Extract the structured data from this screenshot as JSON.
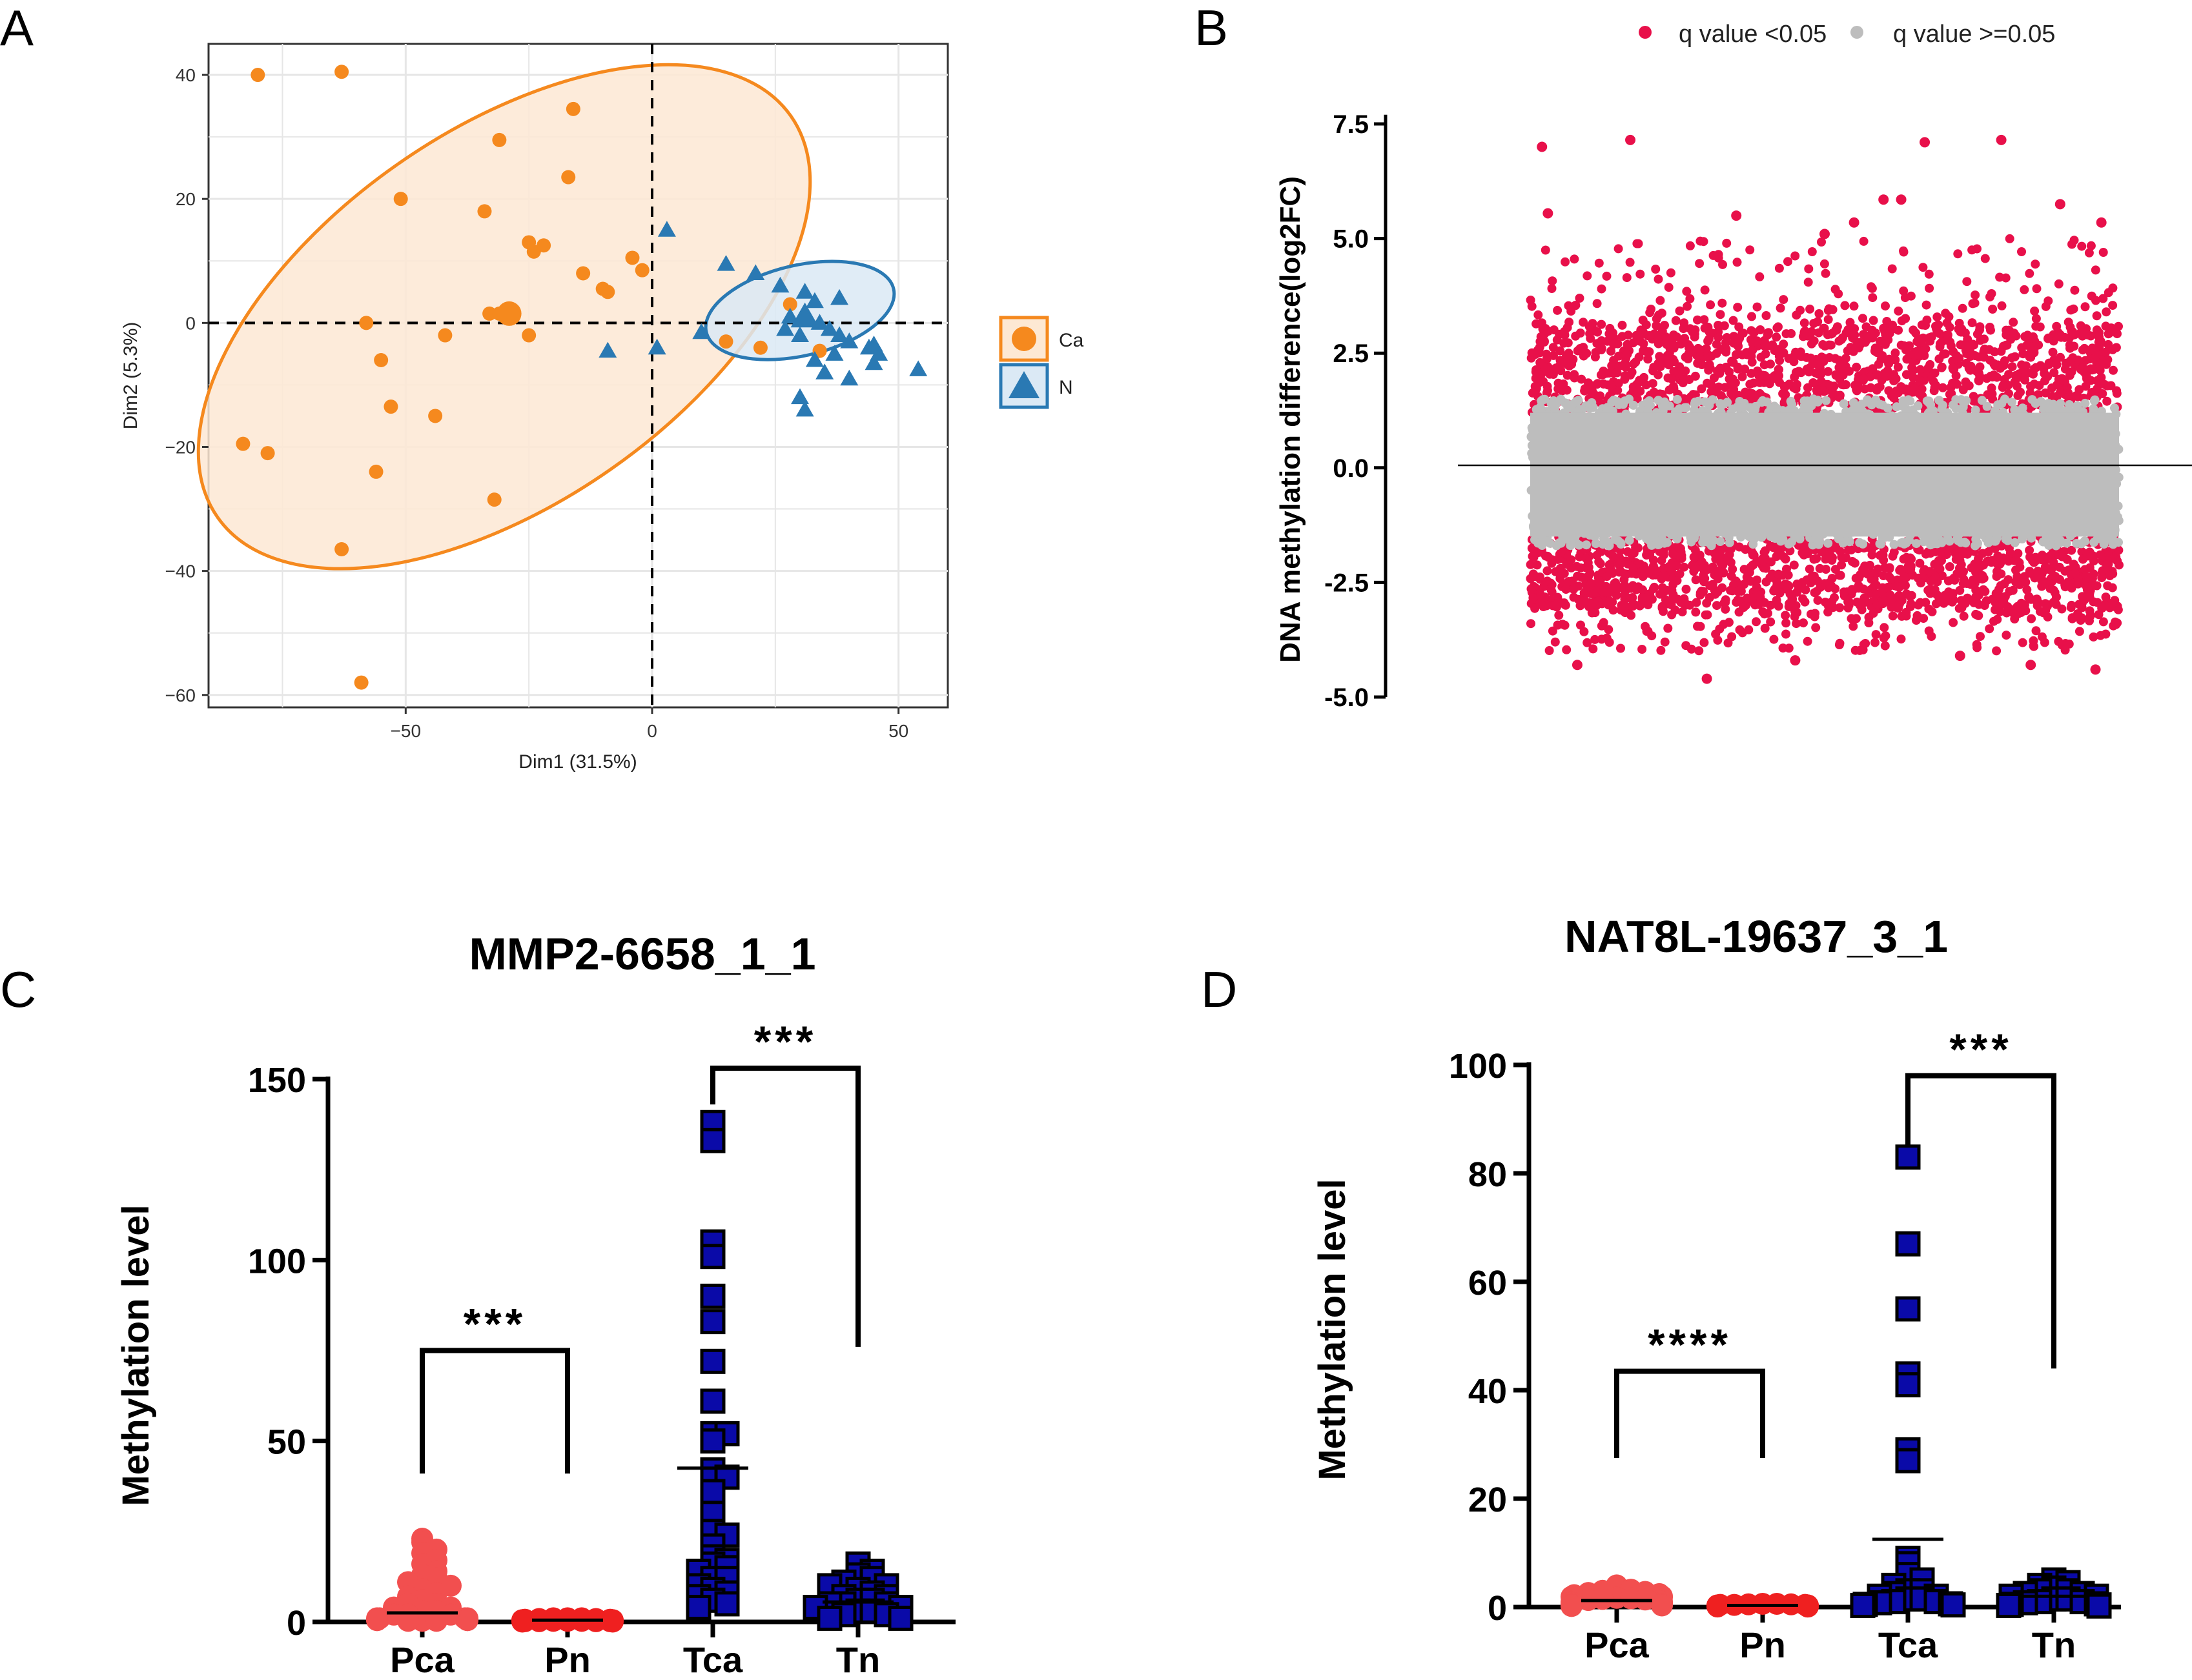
{
  "colors": {
    "ca": "#f5891e",
    "n": "#2a79b3",
    "sig": "#e8104a",
    "nonsig": "#bdbdbd",
    "pca": "#f24f4f",
    "pn": "#ef2020",
    "tca_fill": "#0a0aa8",
    "grid": "#e6e6e6",
    "black": "#000000"
  },
  "chart_data": [
    {
      "type": "scatter",
      "panel_letter": "A",
      "xlabel": "Dim1 (31.5%)",
      "ylabel": "Dim2 (5.3%)",
      "xlim": [
        -90,
        60
      ],
      "ylim": [
        -62,
        45
      ],
      "xticks": [
        -50,
        0,
        50
      ],
      "yticks": [
        -60,
        -40,
        -20,
        0,
        20,
        40
      ],
      "xtick_labels": [
        "−50",
        "0",
        "50"
      ],
      "ytick_labels": [
        "−60",
        "−40",
        "−20",
        "0",
        "20",
        "40"
      ],
      "legend": [
        {
          "name": "Ca",
          "marker": "circle"
        },
        {
          "name": "N",
          "marker": "triangle"
        }
      ],
      "ellipses": [
        {
          "group": "Ca",
          "cx": -30,
          "cy": 1,
          "rx": 71,
          "ry": 30,
          "angle_deg": -35
        },
        {
          "group": "N",
          "cx": 30,
          "cy": 2,
          "rx": 19.5,
          "ry": 7.3,
          "angle_deg": -13
        }
      ],
      "centroids": [
        {
          "group": "Ca",
          "x": -29,
          "y": 1.5
        },
        {
          "group": "N",
          "x": 31,
          "y": 1
        }
      ],
      "series": [
        {
          "name": "Ca",
          "points": [
            [
              -80,
              40
            ],
            [
              -63,
              40.5
            ],
            [
              -16,
              34.5
            ],
            [
              -31,
              29.5
            ],
            [
              -17,
              23.5
            ],
            [
              -51,
              20
            ],
            [
              -34,
              18
            ],
            [
              -25,
              13
            ],
            [
              -22,
              12.5
            ],
            [
              -24,
              11.5
            ],
            [
              -4,
              10.5
            ],
            [
              -2,
              8.5
            ],
            [
              -14,
              8
            ],
            [
              -10,
              5.5
            ],
            [
              -9,
              5
            ],
            [
              -33,
              1.5
            ],
            [
              -31,
              1.5
            ],
            [
              -58,
              0
            ],
            [
              -42,
              -2
            ],
            [
              -25,
              -2
            ],
            [
              -55,
              -6
            ],
            [
              -53,
              -13.5
            ],
            [
              -44,
              -15
            ],
            [
              -56,
              -24
            ],
            [
              -32,
              -28.5
            ],
            [
              -83,
              -19.5
            ],
            [
              -78,
              -21
            ],
            [
              -63,
              -36.5
            ],
            [
              -59,
              -58
            ],
            [
              28,
              3
            ],
            [
              15,
              -3
            ],
            [
              22,
              -4
            ],
            [
              34,
              -4.5
            ]
          ]
        },
        {
          "name": "N",
          "points": [
            [
              3,
              15
            ],
            [
              15,
              9.5
            ],
            [
              21,
              8
            ],
            [
              26,
              6
            ],
            [
              31,
              5
            ],
            [
              38,
              4
            ],
            [
              33,
              3.5
            ],
            [
              28,
              1
            ],
            [
              31,
              0.5
            ],
            [
              34,
              0
            ],
            [
              36,
              -1
            ],
            [
              30,
              -2
            ],
            [
              27,
              -1
            ],
            [
              38,
              -2
            ],
            [
              40,
              -3
            ],
            [
              45,
              -3.5
            ],
            [
              46,
              -5
            ],
            [
              45,
              -6.5
            ],
            [
              33,
              -6
            ],
            [
              35,
              -8
            ],
            [
              40,
              -9
            ],
            [
              30,
              -12
            ],
            [
              31,
              -14
            ],
            [
              54,
              -7.5
            ],
            [
              10,
              -1.5
            ],
            [
              1,
              -4
            ],
            [
              -9,
              -4.5
            ],
            [
              44,
              -4
            ],
            [
              37,
              -5
            ]
          ]
        }
      ]
    },
    {
      "type": "scatter",
      "panel_letter": "B",
      "ylabel": "DNA methylation difference(log2FC)",
      "ylim": [
        -5,
        7.5
      ],
      "yticks": [
        -5,
        -2.5,
        0,
        2.5,
        5,
        7.5
      ],
      "ytick_labels": [
        "-5.0",
        "-2.5",
        "0.0",
        "2.5",
        "5.0",
        "7.5"
      ],
      "legend": [
        {
          "name": "q value <0.05"
        },
        {
          "name": "q value >=0.05"
        }
      ],
      "series": [
        {
          "name": "q value >=0.05",
          "y_band": [
            -1.7,
            1.5
          ]
        },
        {
          "name": "q value <0.05",
          "y_band_upper": [
            1.2,
            3.0
          ],
          "y_band_lower": [
            -3.0,
            -1.5
          ]
        }
      ],
      "outliers_sig": [
        [
          0.02,
          7.0
        ],
        [
          0.17,
          7.15
        ],
        [
          0.67,
          7.1
        ],
        [
          0.8,
          7.15
        ],
        [
          0.03,
          5.55
        ],
        [
          0.35,
          5.5
        ],
        [
          0.5,
          5.1
        ],
        [
          0.55,
          5.35
        ],
        [
          0.6,
          5.85
        ],
        [
          0.63,
          5.85
        ],
        [
          0.9,
          5.75
        ],
        [
          0.97,
          5.35
        ],
        [
          0.08,
          -4.3
        ],
        [
          0.3,
          -4.6
        ],
        [
          0.45,
          -4.2
        ],
        [
          0.73,
          -4.1
        ],
        [
          0.85,
          -4.3
        ],
        [
          0.96,
          -4.4
        ]
      ]
    },
    {
      "type": "scatter",
      "panel_letter": "C",
      "title": "MMP2-6658_1_1",
      "ylabel": "Methylation level",
      "ylim": [
        0,
        150
      ],
      "yticks": [
        0,
        50,
        100,
        150
      ],
      "categories": [
        "Pca",
        "Pn",
        "Tca",
        "Tn"
      ],
      "means": [
        2.5,
        0.5,
        42.5,
        5.5
      ],
      "annotations": [
        {
          "text": "***",
          "between": [
            "Pca",
            "Pn"
          ],
          "y": 75,
          "left_drop": 41,
          "right_drop": 41
        },
        {
          "text": "***",
          "between": [
            "Tca",
            "Tn"
          ],
          "y": 153,
          "left_drop": 143,
          "right_drop": 76
        }
      ],
      "series": [
        {
          "name": "Pca",
          "marker": "circle",
          "values": [
            23,
            22,
            20,
            19,
            17,
            16,
            14,
            13,
            12,
            11,
            10,
            9,
            8,
            7,
            6,
            5,
            5,
            4,
            4,
            3,
            3,
            2,
            2,
            2,
            1,
            1,
            1,
            1,
            0.5,
            0.5,
            0.5,
            0.5,
            0.3,
            0.3,
            0.3
          ]
        },
        {
          "name": "Pn",
          "marker": "circle",
          "values": [
            1,
            1,
            1,
            0.8,
            0.8,
            0.6,
            0.6,
            0.5,
            0.5,
            0.4,
            0.4,
            0.3,
            0.3,
            0.3,
            0.2,
            0.2,
            0.2,
            0.2,
            0.1,
            0.1
          ]
        },
        {
          "name": "Tca",
          "marker": "square",
          "values": [
            138,
            133,
            105,
            101,
            90,
            83,
            72,
            61,
            52,
            52,
            50,
            42,
            40,
            36,
            30,
            25,
            24,
            21,
            18,
            17,
            16,
            15,
            14,
            12,
            12,
            10,
            9,
            8,
            7,
            6,
            5,
            4
          ]
        },
        {
          "name": "Tn",
          "marker": "square",
          "values": [
            16,
            14,
            13,
            12,
            11,
            10,
            10,
            9,
            8,
            7,
            7,
            6,
            6,
            5,
            5,
            5,
            4,
            4,
            3,
            3,
            2,
            2,
            1,
            1
          ]
        }
      ]
    },
    {
      "type": "scatter",
      "panel_letter": "D",
      "title": "NAT8L-19637_3_1",
      "ylabel": "Methylation level",
      "ylim": [
        0,
        100
      ],
      "yticks": [
        0,
        20,
        40,
        60,
        80,
        100
      ],
      "categories": [
        "Pca",
        "Pn",
        "Tca",
        "Tn"
      ],
      "means": [
        1.2,
        0.3,
        12.5,
        2.0
      ],
      "annotations": [
        {
          "text": "****",
          "between": [
            "Pca",
            "Pn"
          ],
          "y": 43.5,
          "left_drop": 27.5,
          "right_drop": 27.5
        },
        {
          "text": "***",
          "between": [
            "Tca",
            "Tn"
          ],
          "y": 98,
          "left_drop": 85,
          "right_drop": 44
        }
      ],
      "series": [
        {
          "name": "Pca",
          "marker": "circle",
          "values": [
            4,
            3.5,
            3.2,
            3,
            2.8,
            2.6,
            2.4,
            2.2,
            2,
            1.9,
            1.8,
            1.7,
            1.6,
            1.5,
            1.4,
            1.3,
            1.2,
            1.1,
            1,
            0.9,
            0.8,
            0.7,
            0.6,
            0.5,
            0.5,
            0.4,
            0.4,
            0.3,
            0.3,
            0.2
          ]
        },
        {
          "name": "Pn",
          "marker": "circle",
          "values": [
            0.6,
            0.6,
            0.5,
            0.5,
            0.4,
            0.4,
            0.4,
            0.3,
            0.3,
            0.3,
            0.3,
            0.2,
            0.2,
            0.2,
            0.2,
            0.1,
            0.1,
            0.1
          ]
        },
        {
          "name": "Tca",
          "marker": "square",
          "values": [
            83,
            67,
            55,
            43,
            41,
            29,
            27,
            9,
            8,
            6,
            5,
            4,
            3,
            3,
            2.5,
            2,
            2,
            1.5,
            1.5,
            1,
            1,
            0.8,
            0.6,
            0.5,
            0.4,
            0.3
          ]
        },
        {
          "name": "Tn",
          "marker": "square",
          "values": [
            5,
            4.5,
            4,
            3.5,
            3,
            3,
            2.5,
            2.5,
            2,
            2,
            1.5,
            1.5,
            1,
            1,
            0.8,
            0.6,
            0.5,
            0.4,
            0.3,
            0.2
          ]
        }
      ]
    }
  ]
}
